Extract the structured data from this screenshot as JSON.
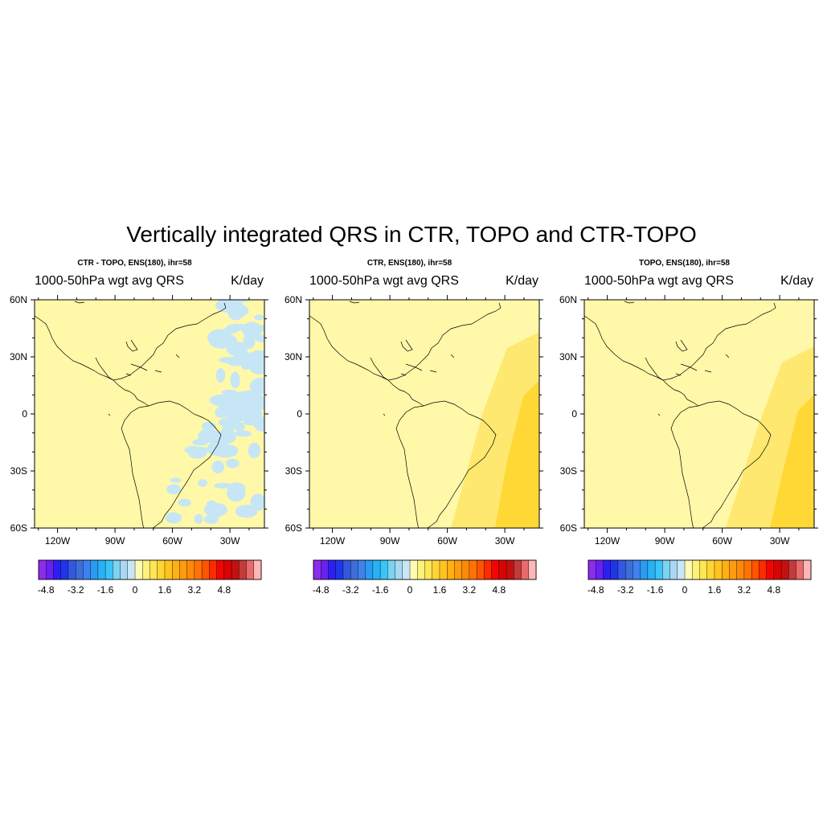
{
  "title": "Vertically integrated QRS in CTR, TOPO and CTR-TOPO",
  "colors": {
    "land_background": "#fff8a8",
    "positive_light": "#ffe870",
    "positive_medium": "#ffd835",
    "negative_light": "#c6e6f6",
    "coastline": "#000000"
  },
  "panels": [
    {
      "subtitle": "CTR - TOPO, ENS(180), ihr=58",
      "left_string": "1000-50hPa wgt avg QRS",
      "right_string": "K/day",
      "field": "difference"
    },
    {
      "subtitle": "CTR, ENS(180), ihr=58",
      "left_string": "1000-50hPa wgt avg QRS",
      "right_string": "K/day",
      "field": "ctr"
    },
    {
      "subtitle": "TOPO, ENS(180), ihr=58",
      "left_string": "1000-50hPa wgt avg QRS",
      "right_string": "K/day",
      "field": "topo"
    }
  ],
  "axes": {
    "lat_labels": [
      "60N",
      "30N",
      "0",
      "30S",
      "60S"
    ],
    "lon_labels": [
      "120W",
      "90W",
      "60W",
      "30W"
    ],
    "lon_range": [
      -132,
      -12
    ],
    "lat_range": [
      -60,
      60
    ]
  },
  "colorbar": {
    "tick_labels": [
      "-4.8",
      "-3.2",
      "-1.6",
      "0",
      "1.6",
      "3.2",
      "4.8"
    ],
    "colors": [
      "#8e2ceb",
      "#6a21ef",
      "#2c1ff2",
      "#1f36e8",
      "#3358df",
      "#3d6ed9",
      "#3e82ef",
      "#2a9bf2",
      "#26b2f5",
      "#39c5f7",
      "#7bd3f2",
      "#aad8f1",
      "#c7e6f6",
      "#fffbb5",
      "#fff27a",
      "#ffe653",
      "#ffd535",
      "#ffc320",
      "#ffb014",
      "#ff9c0e",
      "#ff8908",
      "#ff7305",
      "#ff5400",
      "#ff2b00",
      "#f40505",
      "#d90404",
      "#c51010",
      "#c33a3a",
      "#e86a6a",
      "#ffb6b6"
    ]
  }
}
